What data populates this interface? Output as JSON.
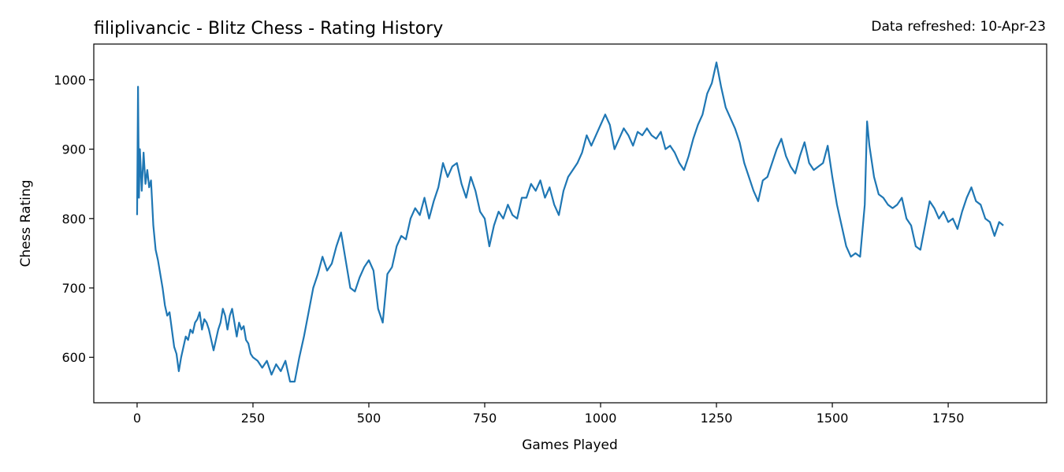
{
  "chart_data": {
    "type": "line",
    "title": "filiplivancic - Blitz Chess - Rating History",
    "annotation": "Data refreshed: 10-Apr-23",
    "x_label": "Games Played",
    "y_label": "Chess Rating",
    "color": "#1f77b4",
    "xlim": [
      -93.45,
      1962.45
    ],
    "ylim": [
      534.5,
      1051.5
    ],
    "xticks": [
      0,
      250,
      500,
      750,
      1000,
      1250,
      1500,
      1750
    ],
    "yticks": [
      600,
      700,
      800,
      900,
      1000
    ],
    "x": [
      0,
      2,
      4,
      6,
      10,
      14,
      18,
      22,
      26,
      30,
      35,
      40,
      45,
      50,
      55,
      60,
      65,
      70,
      75,
      80,
      85,
      90,
      95,
      100,
      105,
      110,
      115,
      120,
      125,
      130,
      135,
      140,
      145,
      150,
      155,
      160,
      165,
      170,
      175,
      180,
      185,
      190,
      195,
      200,
      205,
      210,
      215,
      220,
      225,
      230,
      235,
      240,
      245,
      250,
      260,
      270,
      280,
      290,
      300,
      310,
      320,
      330,
      340,
      350,
      360,
      370,
      380,
      390,
      400,
      410,
      420,
      430,
      440,
      450,
      460,
      470,
      480,
      490,
      500,
      510,
      520,
      530,
      540,
      550,
      560,
      570,
      580,
      590,
      600,
      610,
      620,
      630,
      640,
      650,
      660,
      670,
      680,
      690,
      700,
      710,
      720,
      730,
      740,
      750,
      760,
      770,
      780,
      790,
      800,
      810,
      820,
      830,
      840,
      850,
      860,
      870,
      880,
      890,
      900,
      910,
      920,
      930,
      940,
      950,
      960,
      970,
      980,
      990,
      1000,
      1010,
      1020,
      1030,
      1040,
      1050,
      1060,
      1070,
      1080,
      1090,
      1100,
      1110,
      1120,
      1130,
      1140,
      1150,
      1160,
      1170,
      1180,
      1190,
      1200,
      1210,
      1220,
      1230,
      1240,
      1250,
      1260,
      1270,
      1280,
      1290,
      1300,
      1310,
      1320,
      1330,
      1340,
      1350,
      1360,
      1370,
      1380,
      1390,
      1400,
      1410,
      1420,
      1430,
      1440,
      1450,
      1460,
      1470,
      1480,
      1490,
      1500,
      1510,
      1520,
      1530,
      1540,
      1550,
      1560,
      1570,
      1575,
      1580,
      1590,
      1600,
      1610,
      1620,
      1630,
      1640,
      1650,
      1660,
      1670,
      1680,
      1690,
      1700,
      1710,
      1720,
      1730,
      1740,
      1750,
      1760,
      1770,
      1780,
      1790,
      1800,
      1810,
      1820,
      1830,
      1840,
      1850,
      1860,
      1869
    ],
    "values": [
      805,
      990,
      830,
      900,
      840,
      895,
      850,
      870,
      845,
      855,
      790,
      755,
      740,
      720,
      700,
      675,
      660,
      665,
      640,
      615,
      605,
      580,
      600,
      615,
      630,
      625,
      640,
      635,
      650,
      655,
      665,
      640,
      655,
      650,
      640,
      625,
      610,
      625,
      640,
      650,
      670,
      660,
      640,
      660,
      670,
      650,
      630,
      650,
      640,
      645,
      625,
      620,
      605,
      600,
      595,
      585,
      595,
      575,
      590,
      580,
      595,
      565,
      565,
      600,
      630,
      665,
      700,
      720,
      745,
      725,
      735,
      760,
      780,
      740,
      700,
      695,
      715,
      730,
      740,
      725,
      670,
      650,
      720,
      730,
      760,
      775,
      770,
      800,
      815,
      805,
      830,
      800,
      825,
      845,
      880,
      860,
      875,
      880,
      850,
      830,
      860,
      840,
      810,
      800,
      760,
      790,
      810,
      800,
      820,
      805,
      800,
      830,
      830,
      850,
      840,
      855,
      830,
      845,
      820,
      805,
      840,
      860,
      870,
      880,
      895,
      920,
      905,
      920,
      935,
      950,
      935,
      900,
      915,
      930,
      920,
      905,
      925,
      920,
      930,
      920,
      915,
      925,
      900,
      905,
      895,
      880,
      870,
      890,
      915,
      935,
      950,
      980,
      995,
      1025,
      990,
      960,
      945,
      930,
      910,
      880,
      860,
      840,
      825,
      855,
      860,
      880,
      900,
      915,
      890,
      875,
      865,
      890,
      910,
      880,
      870,
      875,
      880,
      905,
      860,
      820,
      790,
      760,
      745,
      750,
      745,
      820,
      940,
      905,
      860,
      835,
      830,
      820,
      815,
      820,
      830,
      800,
      790,
      760,
      755,
      790,
      825,
      815,
      800,
      810,
      795,
      800,
      785,
      810,
      830,
      845,
      825,
      820,
      800,
      795,
      775,
      795,
      790
    ]
  }
}
